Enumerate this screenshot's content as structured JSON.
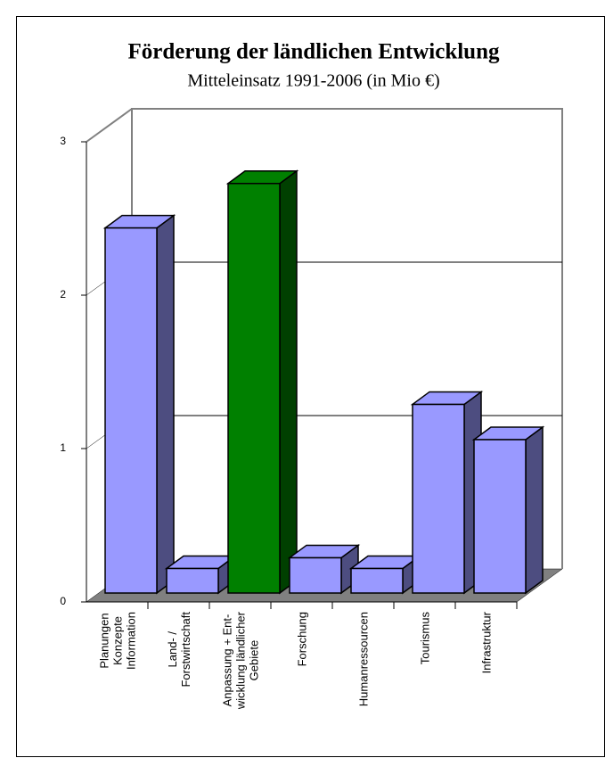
{
  "chart_data": {
    "type": "bar3d",
    "title": "Förderung der ländlichen Entwicklung",
    "subtitle": "Mitteleinsatz 1991-2006 (in Mio €)",
    "categories": [
      "Planungen\nKonzepte\nInformation",
      "Land- /\nForstwirtschaft",
      "Anpassung + Ent-\nwicklung ländlicher\nGebiete",
      "Forschung",
      "Humanressourcen",
      "Tourismus",
      "Infrastruktur"
    ],
    "values": [
      2.38,
      0.16,
      2.67,
      0.23,
      0.16,
      1.23,
      1.0
    ],
    "colors": [
      "#9999ff",
      "#9999ff",
      "#008000",
      "#9999ff",
      "#9999ff",
      "#9999ff",
      "#9999ff"
    ],
    "ylim": [
      0,
      3
    ],
    "yticks": [
      0,
      1,
      2,
      3
    ],
    "grid": true
  }
}
